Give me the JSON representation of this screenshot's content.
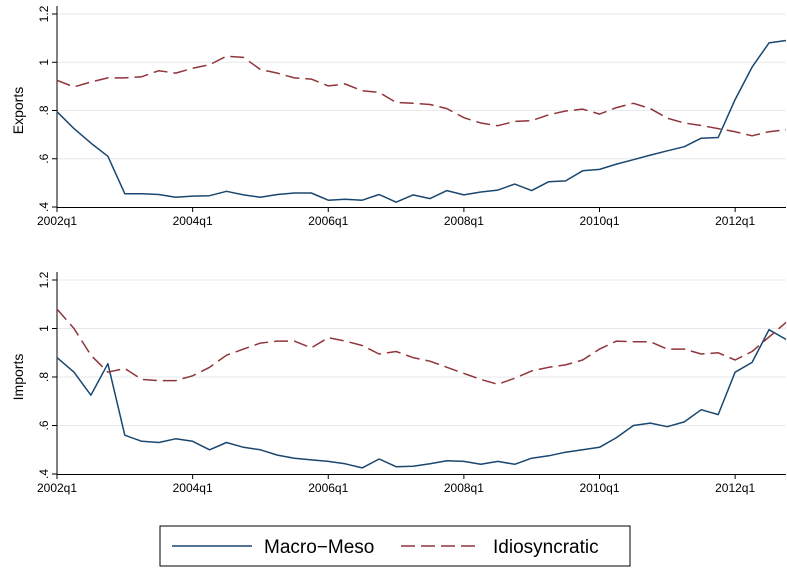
{
  "chart_data": [
    {
      "type": "line",
      "ylabel": "Exports",
      "xlabel": "",
      "ylim": [
        0.4,
        1.2
      ],
      "yticks": [
        0.4,
        0.6,
        0.8,
        1,
        1.2
      ],
      "ytick_labels": [
        ".4",
        ".6",
        ".8",
        "1",
        "1.2"
      ],
      "xticks": [
        0,
        8,
        16,
        24,
        32,
        40
      ],
      "xtick_labels": [
        "2002q1",
        "2004q1",
        "2006q1",
        "2008q1",
        "2010q1",
        "2012q1"
      ],
      "x_quarter_index": [
        0,
        1,
        2,
        3,
        4,
        5,
        6,
        7,
        8,
        9,
        10,
        11,
        12,
        13,
        14,
        15,
        16,
        17,
        18,
        19,
        20,
        21,
        22,
        23,
        24,
        25,
        26,
        27,
        28,
        29,
        30,
        31,
        32,
        33,
        34,
        35,
        36,
        37,
        38,
        39,
        40,
        41,
        42,
        43
      ],
      "grid": true,
      "series": [
        {
          "name": "Macro−Meso",
          "color": "#1a476f",
          "dash": "solid",
          "values": [
            0.795,
            0.725,
            0.665,
            0.61,
            0.455,
            0.455,
            0.452,
            0.44,
            0.445,
            0.447,
            0.465,
            0.45,
            0.44,
            0.452,
            0.458,
            0.458,
            0.428,
            0.432,
            0.428,
            0.452,
            0.42,
            0.45,
            0.435,
            0.468,
            0.45,
            0.462,
            0.47,
            0.495,
            0.468,
            0.505,
            0.508,
            0.55,
            0.556,
            0.578,
            0.596,
            0.615,
            0.633,
            0.65,
            0.685,
            0.688,
            0.845,
            0.98,
            1.08,
            1.09
          ]
        },
        {
          "name": "Idiosyncratic",
          "color": "#90353b",
          "dash": "dashed",
          "values": [
            0.925,
            0.898,
            0.918,
            0.935,
            0.935,
            0.94,
            0.965,
            0.955,
            0.975,
            0.99,
            1.025,
            1.02,
            0.97,
            0.955,
            0.935,
            0.93,
            0.902,
            0.91,
            0.882,
            0.875,
            0.833,
            0.83,
            0.825,
            0.808,
            0.77,
            0.748,
            0.737,
            0.755,
            0.758,
            0.782,
            0.798,
            0.806,
            0.785,
            0.812,
            0.83,
            0.808,
            0.768,
            0.748,
            0.738,
            0.725,
            0.712,
            0.695,
            0.712,
            0.72
          ]
        }
      ]
    },
    {
      "type": "line",
      "ylabel": "Imports",
      "xlabel": "",
      "ylim": [
        0.4,
        1.2
      ],
      "yticks": [
        0.4,
        0.6,
        0.8,
        1,
        1.2
      ],
      "ytick_labels": [
        ".4",
        ".6",
        ".8",
        "1",
        "1.2"
      ],
      "xticks": [
        0,
        8,
        16,
        24,
        32,
        40
      ],
      "xtick_labels": [
        "2002q1",
        "2004q1",
        "2006q1",
        "2008q1",
        "2010q1",
        "2012q1"
      ],
      "x_quarter_index": [
        0,
        1,
        2,
        3,
        4,
        5,
        6,
        7,
        8,
        9,
        10,
        11,
        12,
        13,
        14,
        15,
        16,
        17,
        18,
        19,
        20,
        21,
        22,
        23,
        24,
        25,
        26,
        27,
        28,
        29,
        30,
        31,
        32,
        33,
        34,
        35,
        36,
        37,
        38,
        39,
        40,
        41,
        42,
        43
      ],
      "grid": true,
      "series": [
        {
          "name": "Macro−Meso",
          "color": "#1a476f",
          "dash": "solid",
          "values": [
            0.88,
            0.82,
            0.725,
            0.855,
            0.56,
            0.535,
            0.53,
            0.545,
            0.535,
            0.5,
            0.53,
            0.51,
            0.5,
            0.478,
            0.465,
            0.458,
            0.452,
            0.442,
            0.425,
            0.462,
            0.43,
            0.432,
            0.442,
            0.455,
            0.452,
            0.44,
            0.452,
            0.44,
            0.465,
            0.475,
            0.49,
            0.5,
            0.51,
            0.55,
            0.6,
            0.61,
            0.595,
            0.615,
            0.665,
            0.645,
            0.82,
            0.86,
            0.995,
            0.955
          ]
        },
        {
          "name": "Idiosyncratic",
          "color": "#90353b",
          "dash": "dashed",
          "values": [
            1.08,
            1.0,
            0.89,
            0.82,
            0.835,
            0.79,
            0.785,
            0.785,
            0.805,
            0.84,
            0.89,
            0.915,
            0.94,
            0.948,
            0.948,
            0.92,
            0.962,
            0.948,
            0.93,
            0.895,
            0.905,
            0.88,
            0.865,
            0.84,
            0.815,
            0.79,
            0.77,
            0.795,
            0.825,
            0.84,
            0.85,
            0.87,
            0.915,
            0.948,
            0.945,
            0.945,
            0.915,
            0.915,
            0.895,
            0.9,
            0.87,
            0.905,
            0.965,
            1.025
          ]
        }
      ]
    }
  ],
  "legend": {
    "placement": "bottom",
    "entries": [
      {
        "label": "Macro−Meso",
        "color": "#1a476f",
        "dash": "solid"
      },
      {
        "label": "Idiosyncratic",
        "color": "#90353b",
        "dash": "dashed"
      }
    ]
  }
}
